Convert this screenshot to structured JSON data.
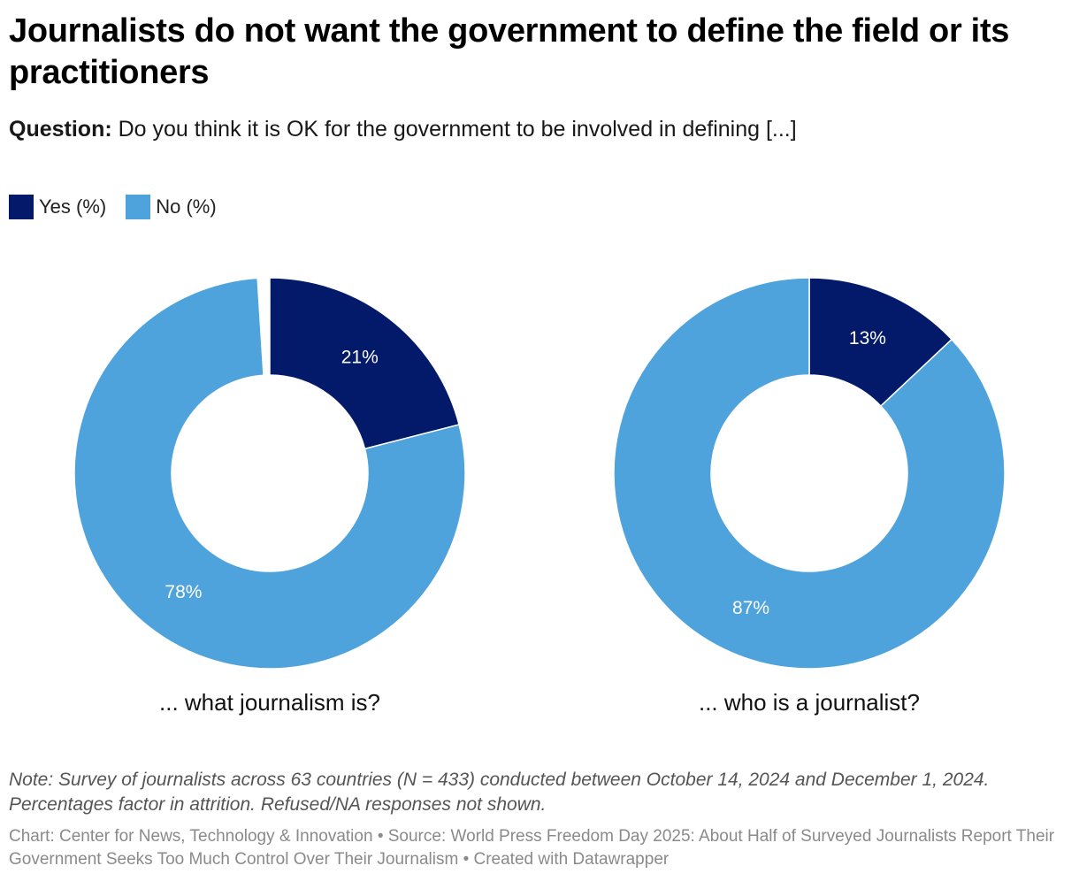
{
  "header": {
    "title": "Journalists do not want the government to define the field or its practitioners",
    "subtitle_bold": "Question:",
    "subtitle_text": "Do you think it is OK for the government to be involved in defining [...]"
  },
  "legend": [
    {
      "label": "Yes (%)",
      "color": "#031a6b"
    },
    {
      "label": "No (%)",
      "color": "#4fa3dc"
    }
  ],
  "chart_data": [
    {
      "type": "pie",
      "title": "... what journalism is?",
      "slices": [
        {
          "name": "Yes (%)",
          "value": 21,
          "label": "21%",
          "color": "#031a6b"
        },
        {
          "name": "No (%)",
          "value": 78,
          "label": "78%",
          "color": "#4fa3dc"
        }
      ]
    },
    {
      "type": "pie",
      "title": "... who is a journalist?",
      "slices": [
        {
          "name": "Yes (%)",
          "value": 13,
          "label": "13%",
          "color": "#031a6b"
        },
        {
          "name": "No (%)",
          "value": 87,
          "label": "87%",
          "color": "#4fa3dc"
        }
      ]
    }
  ],
  "footer": {
    "note": "Note: Survey of journalists across 63 countries (N = 433) conducted between October 14, 2024 and December 1, 2024. Percentages factor in attrition. Refused/NA responses not shown.",
    "credit": "Chart: Center for News, Technology & Innovation • Source: World Press Freedom Day 2025: About Half of Surveyed Journalists Report Their Government Seeks Too Much Control Over Their Journalism • Created with Datawrapper"
  }
}
